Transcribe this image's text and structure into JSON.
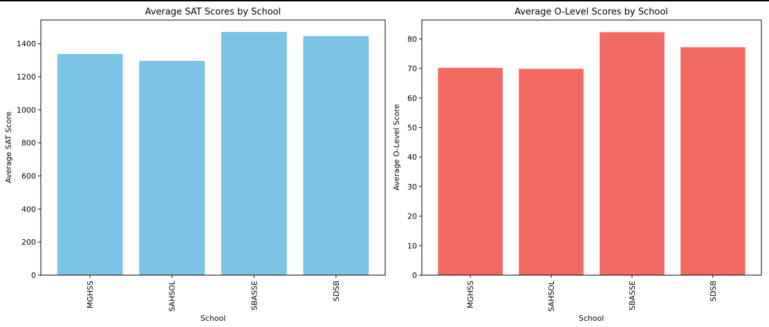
{
  "chart_data": [
    {
      "type": "bar",
      "title": "Average SAT Scores by School",
      "xlabel": "School",
      "ylabel": "Average SAT Score",
      "categories": [
        "MGHSS",
        "SAHSOL",
        "SBASSE",
        "SDSB"
      ],
      "values": [
        1338,
        1296,
        1471,
        1446
      ],
      "ylim": [
        0,
        1543
      ],
      "yticks": [
        0,
        200,
        400,
        600,
        800,
        1000,
        1200,
        1400
      ],
      "color": "#7bc4e6",
      "grid": false,
      "tick_rotation": 90
    },
    {
      "type": "bar",
      "title": "Average O-Level Scores by School",
      "xlabel": "School",
      "ylabel": "Average O-Level Score",
      "categories": [
        "MGHSS",
        "SAHSOL",
        "SBASSE",
        "SDSB"
      ],
      "values": [
        70.2,
        69.9,
        82.3,
        77.2
      ],
      "ylim": [
        0,
        86.4
      ],
      "yticks": [
        0,
        10,
        20,
        30,
        40,
        50,
        60,
        70,
        80
      ],
      "color": "#f26960",
      "grid": false,
      "tick_rotation": 90
    }
  ]
}
